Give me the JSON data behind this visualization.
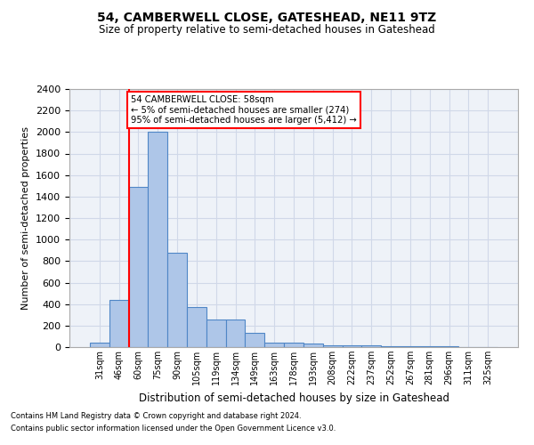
{
  "title": "54, CAMBERWELL CLOSE, GATESHEAD, NE11 9TZ",
  "subtitle": "Size of property relative to semi-detached houses in Gateshead",
  "xlabel": "Distribution of semi-detached houses by size in Gateshead",
  "ylabel": "Number of semi-detached properties",
  "categories": [
    "31sqm",
    "46sqm",
    "60sqm",
    "75sqm",
    "90sqm",
    "105sqm",
    "119sqm",
    "134sqm",
    "149sqm",
    "163sqm",
    "178sqm",
    "193sqm",
    "208sqm",
    "222sqm",
    "237sqm",
    "252sqm",
    "267sqm",
    "281sqm",
    "296sqm",
    "311sqm",
    "325sqm"
  ],
  "values": [
    45,
    440,
    1490,
    2000,
    880,
    375,
    260,
    260,
    130,
    42,
    42,
    30,
    20,
    20,
    15,
    10,
    8,
    5,
    5,
    3,
    3
  ],
  "bar_color": "#aec6e8",
  "bar_edge_color": "#4f86c6",
  "grid_color": "#d0d8e8",
  "background_color": "#eef2f8",
  "vline_x": 1.5,
  "vline_color": "red",
  "annotation_text": "54 CAMBERWELL CLOSE: 58sqm\n← 5% of semi-detached houses are smaller (274)\n95% of semi-detached houses are larger (5,412) →",
  "annotation_box_color": "white",
  "annotation_box_edge_color": "red",
  "ylim": [
    0,
    2400
  ],
  "yticks": [
    0,
    200,
    400,
    600,
    800,
    1000,
    1200,
    1400,
    1600,
    1800,
    2000,
    2200,
    2400
  ],
  "footnote1": "Contains HM Land Registry data © Crown copyright and database right 2024.",
  "footnote2": "Contains public sector information licensed under the Open Government Licence v3.0."
}
